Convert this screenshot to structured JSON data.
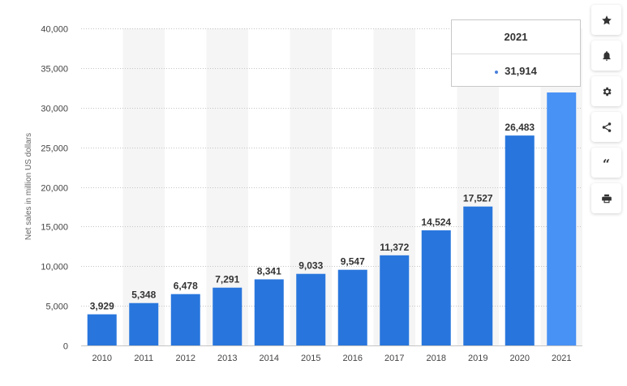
{
  "chart_data": {
    "type": "bar",
    "ylabel": "Net sales in million US dollars",
    "categories": [
      "2010",
      "2011",
      "2012",
      "2013",
      "2014",
      "2015",
      "2016",
      "2017",
      "2018",
      "2019",
      "2020",
      "2021"
    ],
    "values": [
      3929,
      5348,
      6478,
      7291,
      8341,
      9033,
      9547,
      11372,
      14524,
      17527,
      26483,
      31914
    ],
    "value_labels": [
      "3,929",
      "5,348",
      "6,478",
      "7,291",
      "8,341",
      "9,033",
      "9,547",
      "11,372",
      "14,524",
      "17,527",
      "26,483",
      ""
    ],
    "ylim": [
      0,
      40000
    ],
    "yticks": [
      0,
      5000,
      10000,
      15000,
      20000,
      25000,
      30000,
      35000,
      40000
    ],
    "ytick_labels": [
      "0",
      "5,000",
      "10,000",
      "15,000",
      "20,000",
      "25,000",
      "30,000",
      "35,000",
      "40,000"
    ],
    "grid": true,
    "highlighted_index": 11,
    "colors": {
      "bar": "#2876dd",
      "highlight": "#4891f5",
      "band": "#f5f5f5",
      "grid": "#c4c4c4"
    }
  },
  "tooltip": {
    "year": "2021",
    "value": "31,914"
  },
  "toolbar": {
    "buttons": [
      {
        "name": "favorite-button",
        "icon": "star-icon"
      },
      {
        "name": "notification-button",
        "icon": "bell-icon"
      },
      {
        "name": "settings-button",
        "icon": "gear-icon"
      },
      {
        "name": "share-button",
        "icon": "share-icon"
      },
      {
        "name": "cite-button",
        "icon": "quote-icon"
      },
      {
        "name": "print-button",
        "icon": "print-icon"
      }
    ]
  }
}
